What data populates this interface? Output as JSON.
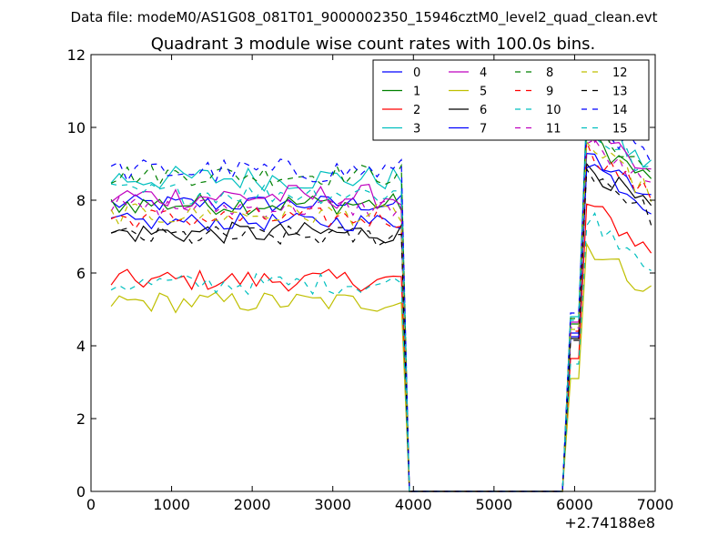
{
  "figure": {
    "suptitle": "Data file: modeM0/AS1G08_081T01_9000002350_15946cztM0_level2_quad_clean.evt"
  },
  "chart_data": {
    "type": "line",
    "title": "Quadrant 3 module wise count rates with 100.0s bins.",
    "xlabel": "",
    "ylabel": "",
    "x_offset_label": "+2.74188e8",
    "xlim": [
      0,
      7000
    ],
    "ylim": [
      0,
      12
    ],
    "xticks": [
      0,
      1000,
      2000,
      3000,
      4000,
      5000,
      6000,
      7000
    ],
    "yticks": [
      0,
      2,
      4,
      6,
      8,
      10,
      12
    ],
    "grid": false,
    "legend": {
      "placement": "top-right",
      "columns": 4
    },
    "series": [
      {
        "name": "0",
        "color": "#0000ff",
        "dash": "solid",
        "base": 7.9,
        "post": 8.7,
        "noise": 0.25
      },
      {
        "name": "1",
        "color": "#008000",
        "dash": "solid",
        "base": 7.9,
        "post": 9.2,
        "noise": 0.3
      },
      {
        "name": "2",
        "color": "#ff0000",
        "dash": "solid",
        "base": 5.8,
        "post": 7.3,
        "noise": 0.3
      },
      {
        "name": "3",
        "color": "#00bfbf",
        "dash": "solid",
        "base": 8.6,
        "post": 9.6,
        "noise": 0.35
      },
      {
        "name": "4",
        "color": "#bf00bf",
        "dash": "solid",
        "base": 8.1,
        "post": 9.3,
        "noise": 0.35
      },
      {
        "name": "5",
        "color": "#bfbf00",
        "dash": "solid",
        "base": 5.2,
        "post": 6.2,
        "noise": 0.3
      },
      {
        "name": "6",
        "color": "#000000",
        "dash": "solid",
        "base": 7.1,
        "post": 8.4,
        "noise": 0.3
      },
      {
        "name": "7",
        "color": "#0000ff",
        "dash": "solid",
        "base": 7.4,
        "post": 8.5,
        "noise": 0.25
      },
      {
        "name": "8",
        "color": "#008000",
        "dash": "dashed",
        "base": 8.7,
        "post": 9.5,
        "noise": 0.3
      },
      {
        "name": "9",
        "color": "#ff0000",
        "dash": "dashed",
        "base": 7.5,
        "post": 8.8,
        "noise": 0.3
      },
      {
        "name": "10",
        "color": "#00bfbf",
        "dash": "dashed",
        "base": 5.7,
        "post": 7.0,
        "noise": 0.3
      },
      {
        "name": "11",
        "color": "#bf00bf",
        "dash": "dashed",
        "base": 7.8,
        "post": 9.0,
        "noise": 0.3
      },
      {
        "name": "12",
        "color": "#bfbf00",
        "dash": "dashed",
        "base": 7.6,
        "post": 8.9,
        "noise": 0.3
      },
      {
        "name": "13",
        "color": "#000000",
        "dash": "dashed",
        "base": 7.0,
        "post": 8.3,
        "noise": 0.3
      },
      {
        "name": "14",
        "color": "#0000ff",
        "dash": "dashed",
        "base": 8.8,
        "post": 9.8,
        "noise": 0.35
      },
      {
        "name": "15",
        "color": "#00bfbf",
        "dash": "dashed",
        "base": 8.2,
        "post": 9.4,
        "noise": 0.3
      }
    ],
    "time_bins": {
      "first": 250,
      "last_on": 3850,
      "drop_end": 3950,
      "gap_end": 5950,
      "rise_end": 6150,
      "last": 7000,
      "step": 100
    }
  }
}
